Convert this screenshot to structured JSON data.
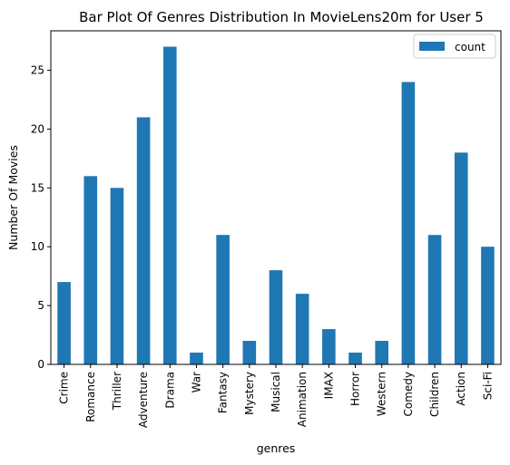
{
  "chart_data": {
    "type": "bar",
    "title": "Bar Plot Of Genres Distribution In MovieLens20m for User 5",
    "xlabel": "genres",
    "ylabel": "Number Of Movies",
    "categories": [
      "Crime",
      "Romance",
      "Thriller",
      "Adventure",
      "Drama",
      "War",
      "Fantasy",
      "Mystery",
      "Musical",
      "Animation",
      "IMAX",
      "Horror",
      "Western",
      "Comedy",
      "Children",
      "Action",
      "Sci-Fi"
    ],
    "series": [
      {
        "name": "count",
        "values": [
          7,
          16,
          15,
          21,
          27,
          1,
          11,
          2,
          8,
          6,
          3,
          1,
          2,
          24,
          11,
          18,
          10
        ],
        "color": "#1f77b4"
      }
    ],
    "ylim": [
      0,
      28.35
    ],
    "yticks": [
      0,
      5,
      10,
      15,
      20,
      25
    ],
    "grid": false,
    "legend_position": "top-right"
  }
}
